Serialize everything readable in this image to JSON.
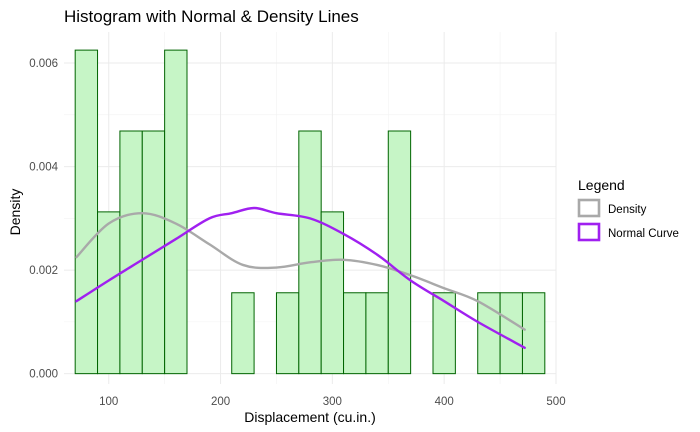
{
  "chart_data": {
    "type": "histogram",
    "title": "Histogram with Normal & Density Lines",
    "xlabel": "Displacement (cu.in.)",
    "ylabel": "Density",
    "xlim": [
      60,
      500
    ],
    "ylim": [
      -0.0002,
      0.0066
    ],
    "x_ticks": [
      100,
      200,
      300,
      400,
      500
    ],
    "y_ticks": [
      0.0,
      0.002,
      0.004,
      0.006
    ],
    "y_tick_labels": [
      "0.000",
      "0.002",
      "0.004",
      "0.006"
    ],
    "grid": true,
    "bar_fill": "#c6f5c6",
    "bar_stroke": "#006400",
    "bins": [
      {
        "x0": 70,
        "x1": 90,
        "density": 0.00625
      },
      {
        "x0": 90,
        "x1": 110,
        "density": 0.003125
      },
      {
        "x0": 110,
        "x1": 130,
        "density": 0.0046875
      },
      {
        "x0": 130,
        "x1": 150,
        "density": 0.0046875
      },
      {
        "x0": 150,
        "x1": 170,
        "density": 0.00625
      },
      {
        "x0": 170,
        "x1": 190,
        "density": 0
      },
      {
        "x0": 190,
        "x1": 210,
        "density": 0
      },
      {
        "x0": 210,
        "x1": 230,
        "density": 0.0015625
      },
      {
        "x0": 230,
        "x1": 250,
        "density": 0
      },
      {
        "x0": 250,
        "x1": 270,
        "density": 0.0015625
      },
      {
        "x0": 270,
        "x1": 290,
        "density": 0.0046875
      },
      {
        "x0": 290,
        "x1": 310,
        "density": 0.003125
      },
      {
        "x0": 310,
        "x1": 330,
        "density": 0.0015625
      },
      {
        "x0": 330,
        "x1": 350,
        "density": 0.0015625
      },
      {
        "x0": 350,
        "x1": 370,
        "density": 0.0046875
      },
      {
        "x0": 370,
        "x1": 390,
        "density": 0
      },
      {
        "x0": 390,
        "x1": 410,
        "density": 0.0015625
      },
      {
        "x0": 410,
        "x1": 430,
        "density": 0
      },
      {
        "x0": 430,
        "x1": 450,
        "density": 0.0015625
      },
      {
        "x0": 450,
        "x1": 470,
        "density": 0.0015625
      },
      {
        "x0": 470,
        "x1": 490,
        "density": 0.0015625
      }
    ],
    "series": [
      {
        "name": "Density",
        "color": "#a9a9a9",
        "x": [
          71.1,
          100,
          130,
          160,
          190,
          220,
          250,
          280,
          310,
          340,
          370,
          400,
          430,
          472
        ],
        "y": [
          0.00225,
          0.0029,
          0.0031,
          0.0029,
          0.0025,
          0.0021,
          0.00205,
          0.00215,
          0.0022,
          0.0021,
          0.0019,
          0.00165,
          0.0014,
          0.00085
        ]
      },
      {
        "name": "Normal Curve",
        "color": "#a020f0",
        "x": [
          71.1,
          100,
          130,
          160,
          190,
          210,
          230,
          250,
          280,
          310,
          340,
          370,
          400,
          430,
          472
        ],
        "y": [
          0.0014,
          0.0018,
          0.0022,
          0.0026,
          0.003,
          0.0031,
          0.0032,
          0.0031,
          0.003,
          0.0027,
          0.0023,
          0.0018,
          0.0014,
          0.001,
          0.0005
        ]
      }
    ],
    "legend": {
      "title": "Legend",
      "position": "right",
      "entries": [
        "Density",
        "Normal Curve"
      ]
    }
  }
}
